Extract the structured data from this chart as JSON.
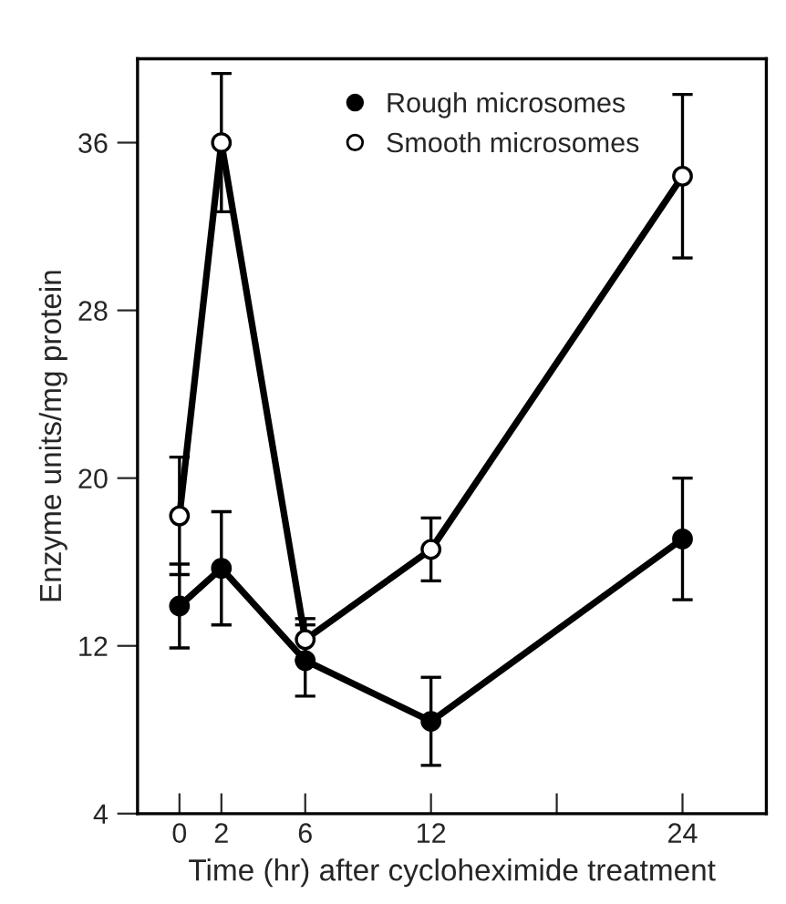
{
  "chart_data": {
    "type": "line",
    "xlabel": "Time (hr) after cycloheximide treatment",
    "ylabel": "Enzyme units/mg protein",
    "x": [
      0,
      2,
      6,
      12,
      24
    ],
    "series": [
      {
        "name": "Rough microsomes",
        "color": "#000000",
        "values": [
          13.9,
          15.7,
          11.3,
          8.4,
          17.1
        ],
        "errors": [
          2,
          2.7,
          1.7,
          2.1,
          2.9
        ]
      },
      {
        "name": "Smooth microsomes",
        "color": "#000000",
        "values": [
          18.2,
          36,
          12.3,
          16.6,
          34.4
        ],
        "errors": [
          2.8,
          3.3,
          1,
          1.5,
          3.9
        ]
      }
    ],
    "xlim": [
      -2,
      28
    ],
    "ylim": [
      4,
      40
    ],
    "xticks": [
      0,
      2,
      6,
      12,
      {
        "value": 18,
        "label": null
      },
      24
    ],
    "yticks": [
      4,
      12,
      20,
      28,
      36
    ],
    "grid": false,
    "legend": "top",
    "marker": "circle",
    "line_style": "solid"
  }
}
